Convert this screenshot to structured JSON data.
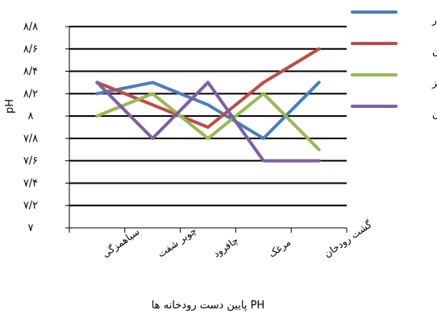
{
  "chart_data": {
    "type": "line",
    "xlabel": "PH پایین دست رودخانه ها",
    "ylabel": "pH",
    "categories": [
      "سیاهمزگی",
      "چوبر شفت",
      "چافرود",
      "مرغک",
      "گشت رودخان"
    ],
    "yticks": [
      "۷",
      "۷/۲",
      "۷/۴",
      "۷/۶",
      "۷/۸",
      "۸",
      "۸/۲",
      "۸/۴",
      "۸/۶",
      "۸/۸"
    ],
    "ylim": [
      7,
      8.8
    ],
    "grid": true,
    "legend_position": "right",
    "series": [
      {
        "name": "بهار",
        "color": "#4a7ebb",
        "values": [
          8.2,
          8.3,
          8.1,
          7.8,
          8.3
        ]
      },
      {
        "name": "تابستان",
        "color": "#be4b48",
        "values": [
          8.3,
          8.1,
          7.9,
          8.3,
          8.6
        ]
      },
      {
        "name": "پاییز",
        "color": "#98b954",
        "values": [
          8.0,
          8.2,
          7.8,
          8.2,
          7.7
        ]
      },
      {
        "name": "زمستان",
        "color": "#7d60a0",
        "values": [
          8.3,
          7.8,
          8.3,
          7.6,
          7.6
        ]
      }
    ]
  }
}
